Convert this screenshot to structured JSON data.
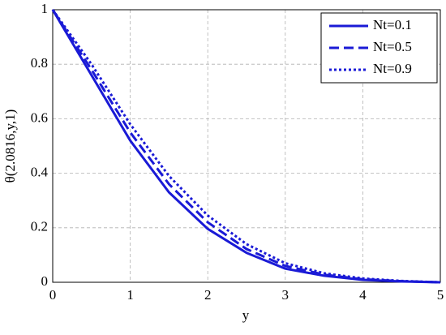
{
  "chart_data": {
    "type": "line",
    "xlabel": "y",
    "ylabel": "θ(2.0816,y,1)",
    "x": [
      0,
      0.5,
      1,
      1.5,
      2,
      2.5,
      3,
      3.5,
      4,
      4.5,
      5
    ],
    "series": [
      {
        "name": "Nt=0.1",
        "color": "#1a1ad6",
        "dash": "solid",
        "values": [
          1,
          0.76,
          0.52,
          0.33,
          0.196,
          0.108,
          0.05,
          0.024,
          0.009,
          0.003,
          0
        ]
      },
      {
        "name": "Nt=0.5",
        "color": "#1a1ad6",
        "dash": "dashed",
        "values": [
          1,
          0.78,
          0.55,
          0.36,
          0.22,
          0.122,
          0.06,
          0.028,
          0.011,
          0.004,
          0
        ]
      },
      {
        "name": "Nt=0.9",
        "color": "#1a1ad6",
        "dash": "dotted",
        "values": [
          1,
          0.8,
          0.58,
          0.39,
          0.245,
          0.14,
          0.07,
          0.033,
          0.014,
          0.005,
          0
        ]
      }
    ],
    "xlim": [
      0,
      5
    ],
    "xticks": [
      0,
      1,
      2,
      3,
      4,
      5
    ],
    "ylim": [
      0,
      1
    ],
    "yticks": [
      0,
      0.2,
      0.4,
      0.6,
      0.8,
      1
    ],
    "grid": true,
    "legend": "upper-right"
  }
}
